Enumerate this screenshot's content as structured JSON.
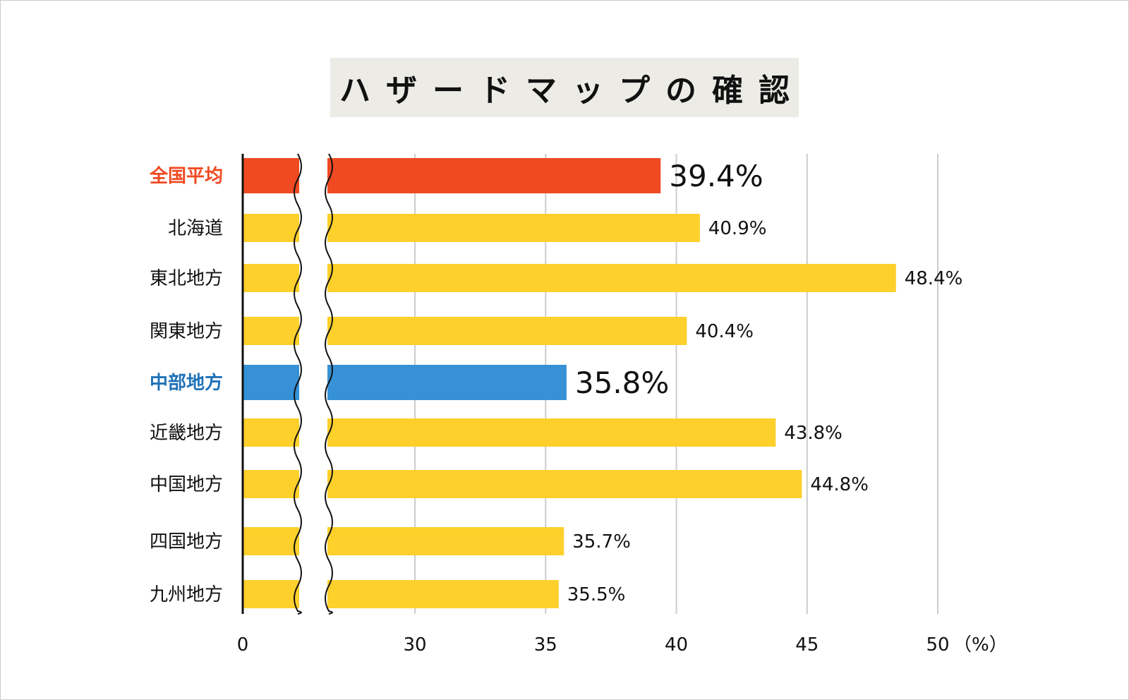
{
  "chart_data": {
    "type": "bar",
    "orientation": "horizontal",
    "title": "ハザードマップの確認",
    "unit_label": "（%）",
    "axis_break": true,
    "xlim": [
      25,
      50
    ],
    "ticks": [
      "0",
      "30",
      "35",
      "40",
      "45",
      "50"
    ],
    "tick_values": [
      25,
      30,
      35,
      40,
      45,
      50
    ],
    "categories": [
      "全国平均",
      "北海道",
      "東北地方",
      "関東地方",
      "中部地方",
      "近畿地方",
      "中国地方",
      "四国地方",
      "九州地方"
    ],
    "values": [
      39.4,
      40.9,
      48.4,
      40.4,
      35.8,
      43.8,
      44.8,
      35.7,
      35.5
    ],
    "value_labels": [
      "39.4%",
      "40.9%",
      "48.4%",
      "40.4%",
      "35.8%",
      "43.8%",
      "44.8%",
      "35.7%",
      "35.5%"
    ],
    "highlight": [
      0,
      4
    ],
    "colors": {
      "default": "#fdd02b",
      "national": "#f04a22",
      "chubu": "#3691d6",
      "national_label": "#f04a22",
      "chubu_label": "#1f72b8",
      "default_label": "#111111",
      "grid": "#cccccc"
    }
  }
}
